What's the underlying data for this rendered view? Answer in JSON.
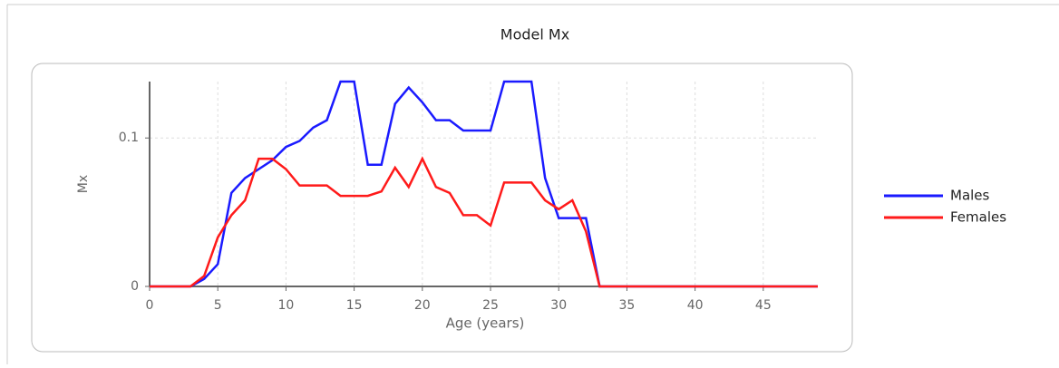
{
  "chart_data": {
    "type": "line",
    "title": "Model Mx",
    "xlabel": "Age (years)",
    "ylabel": "Mx",
    "x": [
      0,
      1,
      2,
      3,
      4,
      5,
      6,
      7,
      8,
      9,
      10,
      11,
      12,
      13,
      14,
      15,
      16,
      17,
      18,
      19,
      20,
      21,
      22,
      23,
      24,
      25,
      26,
      27,
      28,
      29,
      30,
      31,
      32,
      33,
      34,
      35,
      36,
      37,
      38,
      39,
      40,
      41,
      42,
      43,
      44,
      45,
      46,
      47,
      48,
      49
    ],
    "series": [
      {
        "name": "Males",
        "color": "#1a1aff",
        "values": [
          0,
          0,
          0,
          0,
          0.005,
          0.015,
          0.063,
          0.073,
          0.079,
          0.085,
          0.094,
          0.098,
          0.107,
          0.112,
          0.138,
          0.138,
          0.082,
          0.082,
          0.123,
          0.134,
          0.124,
          0.112,
          0.112,
          0.105,
          0.105,
          0.105,
          0.138,
          0.138,
          0.138,
          0.073,
          0.046,
          0.046,
          0.046,
          0,
          0,
          0,
          0,
          0,
          0,
          0,
          0,
          0,
          0,
          0,
          0,
          0,
          0,
          0,
          0,
          0
        ]
      },
      {
        "name": "Females",
        "color": "#ff1a1a",
        "values": [
          0,
          0,
          0,
          0,
          0.007,
          0.033,
          0.048,
          0.058,
          0.086,
          0.086,
          0.079,
          0.068,
          0.068,
          0.068,
          0.061,
          0.061,
          0.061,
          0.064,
          0.08,
          0.067,
          0.086,
          0.067,
          0.063,
          0.048,
          0.048,
          0.041,
          0.07,
          0.07,
          0.07,
          0.058,
          0.052,
          0.058,
          0.037,
          0,
          0,
          0,
          0,
          0,
          0,
          0,
          0,
          0,
          0,
          0,
          0,
          0,
          0,
          0,
          0,
          0
        ]
      }
    ],
    "xlim": [
      0,
      49
    ],
    "ylim": [
      0,
      0.138
    ],
    "xticks": [
      0,
      5,
      10,
      15,
      20,
      25,
      30,
      35,
      40,
      45
    ],
    "yticks": [
      0,
      0.1
    ],
    "grid": true,
    "legend": "right"
  }
}
